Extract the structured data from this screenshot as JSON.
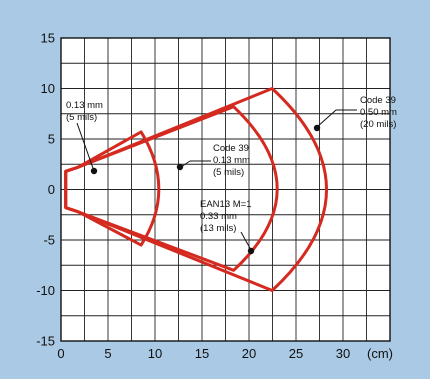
{
  "chart_data": {
    "type": "reading-range-diagram",
    "xlim": [
      0,
      35
    ],
    "ylim": [
      -15,
      15
    ],
    "x_ticks": [
      0,
      5,
      10,
      15,
      20,
      25,
      30
    ],
    "y_ticks": [
      15,
      10,
      5,
      0,
      -5,
      -10,
      -15
    ],
    "x_unit": "(cm)",
    "grid": true,
    "colors": {
      "background": "#a9c9e4",
      "plot": "#ffffff",
      "zones": "#d42a20",
      "grid": "#222222"
    },
    "window": {
      "x": 0.5,
      "half_height": 1.8
    },
    "zones": [
      {
        "name": "0.13 mm (5 mils)",
        "near": 1.8,
        "far": 10.0,
        "top": 5.7,
        "bottom": -5.5
      },
      {
        "name": "0.33 mm (13 mils)",
        "near": 1.8,
        "far": 22.0,
        "top": 8.2,
        "bottom": -8.0
      },
      {
        "name": "0.50 mm (20 mils)",
        "near": 1.8,
        "far": 27.0,
        "top": 10.0,
        "bottom": -10.0
      }
    ],
    "annotations": [
      {
        "id": "ann-near-013",
        "lines": [
          "0.13 mm",
          "(5 mils)"
        ],
        "point": [
          3.3,
          1.4
        ]
      },
      {
        "id": "ann-code39-013",
        "lines": [
          "Code 39",
          "0.13 mm",
          "(5 mils)"
        ],
        "point": [
          12.0,
          1.8
        ]
      },
      {
        "id": "ann-ean13",
        "lines": [
          "EAN13 M=1",
          "0.33 mm",
          "(13 mils)"
        ],
        "point": [
          19.3,
          -6.6
        ]
      },
      {
        "id": "ann-code39-050",
        "lines": [
          "Code 39",
          "0.50 mm",
          "(20 mils)"
        ],
        "point": [
          25.9,
          5.8
        ]
      }
    ]
  }
}
